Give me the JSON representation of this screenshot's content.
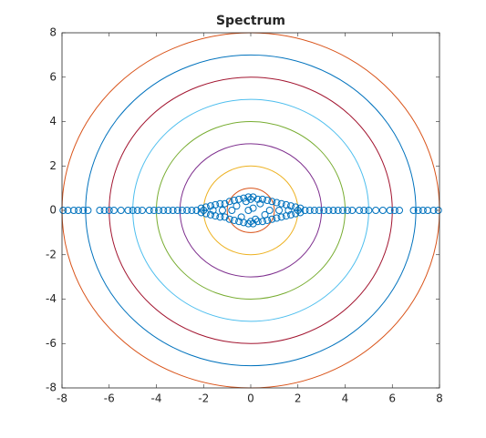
{
  "chart_data": {
    "type": "scatter",
    "title": "Spectrum",
    "xlim": [
      -8,
      8
    ],
    "ylim": [
      -8,
      8
    ],
    "xticks": [
      -8,
      -6,
      -4,
      -2,
      0,
      2,
      4,
      6,
      8
    ],
    "yticks": [
      -8,
      -6,
      -4,
      -2,
      0,
      2,
      4,
      6,
      8
    ],
    "series": [
      {
        "color": "#0072bd",
        "x": [
          -7.95,
          -7.75,
          -7.5,
          -7.3,
          -7.1,
          -6.9,
          -6.4,
          -6.2,
          -6,
          -5.8,
          -5.5,
          -5.2,
          -5,
          -4.8,
          -4.6,
          -4.3,
          -4.1,
          -3.9,
          -3.7,
          -3.5,
          -3.3,
          -3.1,
          -2.9,
          -2.7,
          -2.5,
          -2.3,
          2.3,
          2.5,
          2.7,
          2.9,
          3.1,
          3.3,
          3.5,
          3.7,
          3.9,
          4.1,
          4.3,
          4.6,
          4.8,
          5,
          5.3,
          5.6,
          5.9,
          6.1,
          6.3,
          6.9,
          7.1,
          7.3,
          7.5,
          7.75,
          7.95,
          -2.1,
          -1.9,
          -1.7,
          -1.5,
          -1.3,
          -1.1,
          -0.9,
          -0.7,
          -0.5,
          -0.3,
          -0.1,
          0.1,
          0.3,
          0.5,
          0.7,
          0.9,
          1.1,
          1.3,
          1.5,
          1.7,
          1.9,
          2.1,
          -2.1,
          -1.9,
          -1.7,
          -1.5,
          -1.3,
          -1.1,
          -0.9,
          -0.7,
          -0.5,
          -0.3,
          -0.1,
          0.1,
          0.3,
          0.5,
          0.7,
          0.9,
          1.1,
          1.3,
          1.5,
          1.7,
          1.9,
          2.1,
          -0.6,
          -0.4,
          -0.2,
          0,
          0.2,
          0.4,
          0.6,
          0,
          -0.1,
          0.1,
          -2,
          -1.6,
          -1.2,
          -0.8,
          0.8,
          1.2,
          1.6,
          2
        ],
        "y": [
          0,
          0,
          0,
          0,
          0,
          0,
          0,
          0,
          0,
          0,
          0,
          0,
          0,
          0,
          0,
          0,
          0,
          0,
          0,
          0,
          0,
          0,
          0,
          0,
          0,
          0,
          0,
          0,
          0,
          0,
          0,
          0,
          0,
          0,
          0,
          0,
          0,
          0,
          0,
          0,
          0,
          0,
          0,
          0,
          0,
          0,
          0,
          0,
          0,
          0,
          0,
          0.1,
          -0.15,
          0.2,
          -0.25,
          0.3,
          -0.3,
          0.4,
          -0.45,
          0.5,
          -0.55,
          0.6,
          -0.6,
          0.5,
          -0.5,
          0.45,
          -0.4,
          0.35,
          -0.3,
          0.25,
          -0.2,
          0.15,
          -0.1,
          -0.1,
          0.15,
          -0.2,
          0.25,
          -0.3,
          0.3,
          -0.4,
          0.45,
          -0.5,
          0.55,
          -0.6,
          0.6,
          -0.5,
          0.5,
          -0.45,
          0.4,
          -0.35,
          0.3,
          -0.25,
          0.2,
          -0.15,
          0.1,
          0.2,
          -0.3,
          0.4,
          0.5,
          -0.4,
          0.3,
          -0.2,
          -0.5,
          0,
          0.1,
          0,
          0,
          0,
          0,
          0,
          0,
          0,
          0
        ]
      }
    ],
    "circles": [
      {
        "radius": 1,
        "color": "#d95319"
      },
      {
        "radius": 2,
        "color": "#edb120"
      },
      {
        "radius": 3,
        "color": "#7e2f8e"
      },
      {
        "radius": 4,
        "color": "#77ac30"
      },
      {
        "radius": 5,
        "color": "#4dbeee"
      },
      {
        "radius": 6,
        "color": "#a2142f"
      },
      {
        "radius": 7,
        "color": "#0072bd"
      },
      {
        "radius": 8,
        "color": "#d95319"
      }
    ]
  }
}
